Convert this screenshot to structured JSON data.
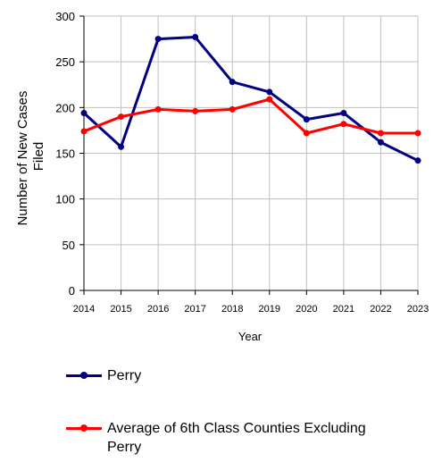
{
  "chart_data": {
    "type": "line",
    "title": "",
    "xlabel": "Year",
    "ylabel_lines": [
      "Number of New Cases",
      "Filed"
    ],
    "ylim": [
      0,
      300
    ],
    "yticks": [
      0,
      50,
      100,
      150,
      200,
      250,
      300
    ],
    "grid": true,
    "legend_position": "bottom",
    "categories": [
      "2014",
      "2015",
      "2016",
      "2017",
      "2018",
      "2019",
      "2020",
      "2021",
      "2022",
      "2023"
    ],
    "series": [
      {
        "name": "Perry",
        "color": "#000080",
        "values": [
          194,
          157,
          275,
          277,
          228,
          217,
          187,
          194,
          162,
          142
        ]
      },
      {
        "name": "Average of 6th Class Counties Excluding Perry",
        "color": "#ff0000",
        "values": [
          174,
          190,
          198,
          196,
          198,
          209,
          172,
          182,
          172,
          172
        ]
      }
    ]
  },
  "legend": {
    "items": [
      {
        "label_lines": [
          "Perry"
        ]
      },
      {
        "label_lines": [
          "Average of 6th Class Counties Excluding",
          "Perry"
        ]
      }
    ]
  }
}
